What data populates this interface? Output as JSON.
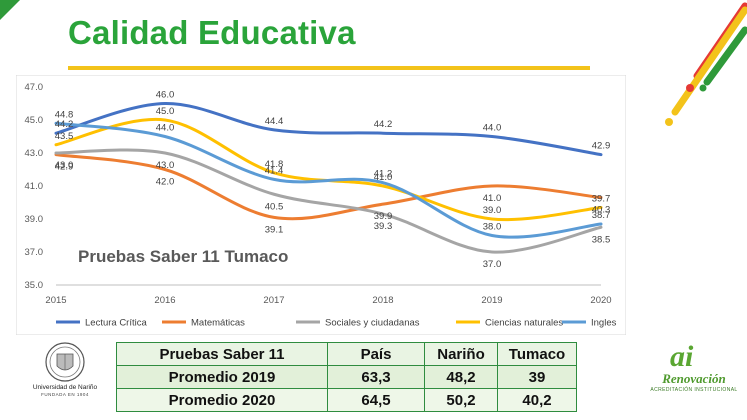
{
  "slide": {
    "title": "Calidad Educativa",
    "colors": {
      "title": "#2aa43a",
      "underline": "#f3c31a",
      "green": "#2f9a3a",
      "red": "#e53935",
      "yellow": "#f3c31a"
    }
  },
  "chart_data": {
    "type": "line",
    "title": "Pruebas Saber 11 Tumaco",
    "x": [
      "2015",
      "2016",
      "2017",
      "2018",
      "2019",
      "2020"
    ],
    "ylim": [
      35.0,
      47.0
    ],
    "yticks": [
      "35.0",
      "37.0",
      "39.0",
      "41.0",
      "43.0",
      "45.0",
      "47.0"
    ],
    "legend_position": "bottom",
    "grid": false,
    "series": [
      {
        "name": "Lectura Crítica",
        "color": "#4472c4",
        "values": [
          44.2,
          46.0,
          44.4,
          44.2,
          44.0,
          42.9
        ],
        "labels": [
          "44.2",
          "46.0",
          "44.4",
          "44.2",
          "44.0",
          "42.9"
        ]
      },
      {
        "name": "Matemáticas",
        "color": "#ed7d31",
        "values": [
          42.9,
          42.0,
          39.1,
          39.9,
          41.0,
          40.3
        ],
        "labels": [
          "42.9",
          "42.0",
          "39.1",
          "39.9",
          "41.0",
          "40.3"
        ]
      },
      {
        "name": "Sociales y ciudadanas",
        "color": "#a5a5a5",
        "values": [
          43.0,
          43.0,
          40.5,
          39.3,
          37.0,
          38.5
        ],
        "labels": [
          "43.0",
          "43.0",
          "40.5",
          "39.3",
          "37.0",
          "38.5"
        ]
      },
      {
        "name": "Ciencias naturales",
        "color": "#ffc000",
        "values": [
          43.5,
          45.0,
          41.8,
          41.0,
          39.0,
          39.7
        ],
        "labels": [
          "43.5",
          "45.0",
          "41.8",
          "41.0",
          "39.0",
          "39.7"
        ]
      },
      {
        "name": "Ingles",
        "color": "#5b9bd5",
        "values": [
          44.8,
          44.0,
          41.4,
          41.2,
          38.0,
          38.7
        ],
        "labels": [
          "44.8",
          "44.0",
          "41.4",
          "41.2",
          "38.0",
          "38.7"
        ]
      }
    ]
  },
  "table": {
    "headers": [
      "Pruebas Saber 11",
      "País",
      "Nariño",
      "Tumaco"
    ],
    "rows": [
      [
        "Promedio 2019",
        "63,3",
        "48,2",
        "39"
      ],
      [
        "Promedio 2020",
        "64,5",
        "50,2",
        "40,2"
      ]
    ]
  },
  "logos": {
    "left_name": "Universidad de Nariño",
    "left_sub": "FUNDADA EN 1904",
    "right_mark": "ai",
    "right_name": "Renovación",
    "right_sub": "ACREDITACIÓN INSTITUCIONAL"
  }
}
